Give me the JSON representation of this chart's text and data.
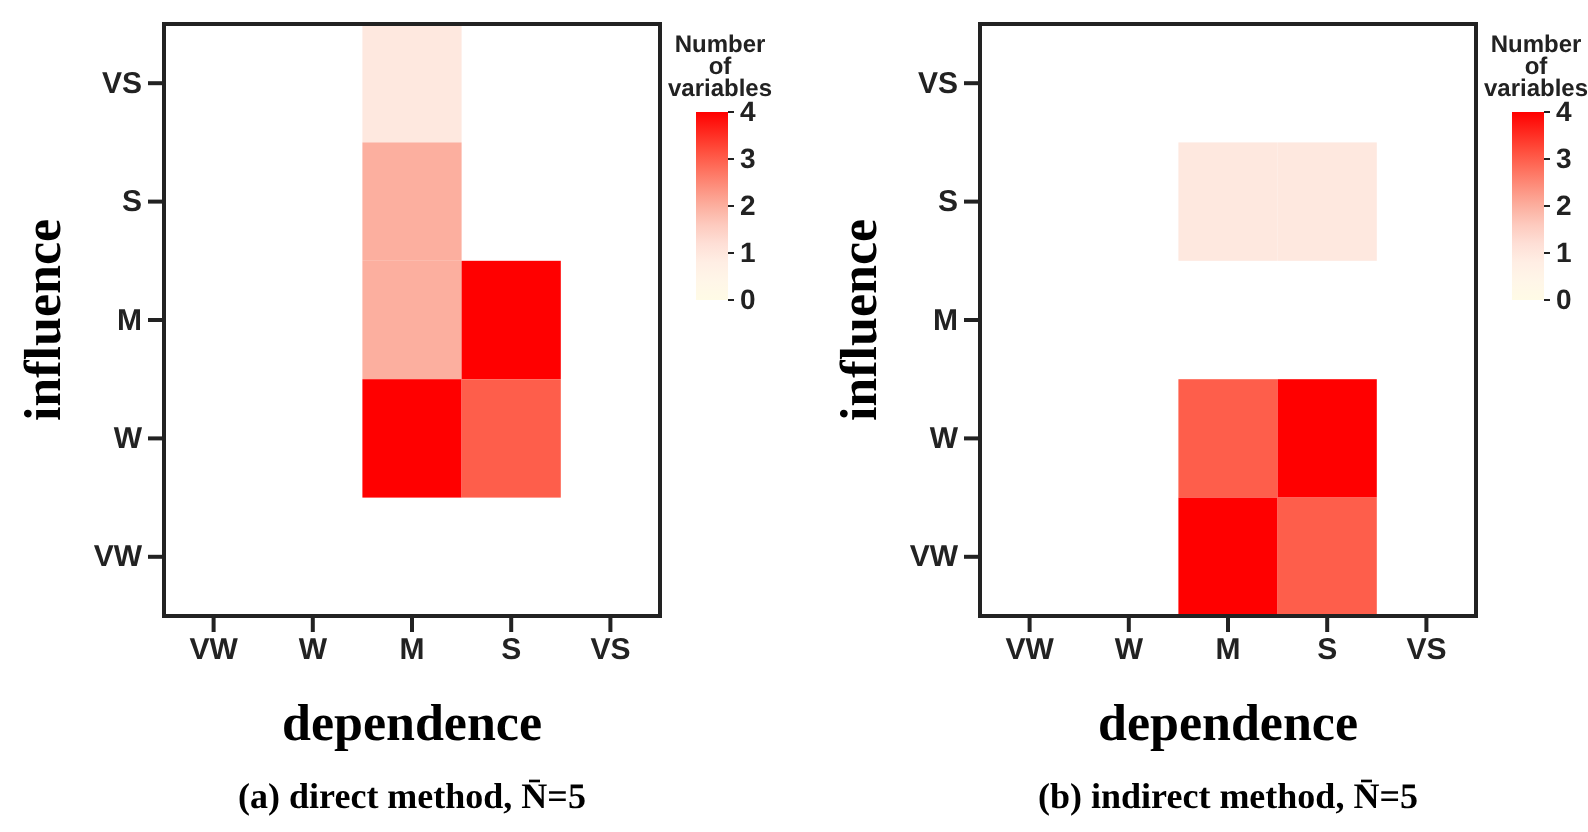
{
  "chart_data": [
    {
      "type": "heatmap",
      "title": "(a) direct method, N̄=5",
      "xlabel": "dependence",
      "ylabel": "influence",
      "clabel": "Number of variables",
      "categories": [
        "VW",
        "W",
        "M",
        "S",
        "VS"
      ],
      "y_categories": [
        "VS",
        "S",
        "M",
        "W",
        "VW"
      ],
      "cells": [
        [
          null,
          null,
          1,
          null,
          null
        ],
        [
          null,
          null,
          2,
          null,
          null
        ],
        [
          null,
          null,
          2,
          4,
          null
        ],
        [
          null,
          null,
          4,
          3,
          null
        ],
        [
          null,
          null,
          null,
          null,
          null
        ]
      ],
      "clim": [
        0,
        4
      ],
      "cticks": [
        0,
        1,
        2,
        3,
        4
      ]
    },
    {
      "type": "heatmap",
      "title": "(b) indirect method, N̄=5",
      "xlabel": "dependence",
      "ylabel": "influence",
      "clabel": "Number of variables",
      "categories": [
        "VW",
        "W",
        "M",
        "S",
        "VS"
      ],
      "y_categories": [
        "VS",
        "S",
        "M",
        "W",
        "VW"
      ],
      "cells": [
        [
          null,
          null,
          null,
          null,
          null
        ],
        [
          null,
          null,
          1,
          1,
          null
        ],
        [
          null,
          null,
          null,
          null,
          null
        ],
        [
          null,
          null,
          3,
          4,
          null
        ],
        [
          null,
          null,
          4,
          3,
          null
        ]
      ],
      "clim": [
        0,
        4
      ],
      "cticks": [
        0,
        1,
        2,
        3,
        4
      ]
    }
  ]
}
